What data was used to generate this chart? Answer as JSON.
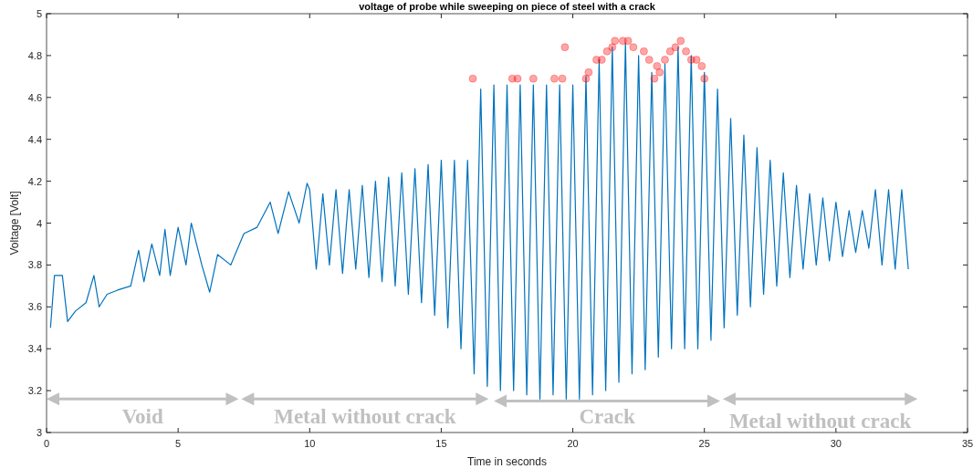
{
  "chart_data": {
    "type": "line",
    "title": "voltage of probe while sweeping on piece of steel with a crack",
    "xlabel": "Time in seconds",
    "ylabel": "Voltage [Volt]",
    "xlim": [
      0,
      35
    ],
    "xticks": [
      0,
      5,
      10,
      15,
      20,
      25,
      30,
      35
    ],
    "ylim": [
      3,
      5
    ],
    "yticks": [
      3,
      3.2,
      3.4,
      3.6,
      3.8,
      4,
      4.2,
      4.4,
      4.6,
      4.8,
      5
    ],
    "grid": false,
    "series": [
      {
        "type": "line",
        "color": "#0072bd",
        "x": [
          0.15,
          0.3,
          0.6,
          0.8,
          1.1,
          1.5,
          1.8,
          2,
          2.3,
          2.7,
          3.2,
          3.5,
          3.7,
          4,
          4.3,
          4.5,
          4.7,
          5,
          5.3,
          5.5,
          5.9,
          6.2,
          6.5,
          7,
          7.5,
          8,
          8.5,
          8.8,
          9.2,
          9.6,
          9.9,
          10,
          10.25,
          10.5,
          10.75,
          11,
          11.25,
          11.5,
          11.75,
          12,
          12.25,
          12.5,
          12.75,
          13,
          13.25,
          13.5,
          13.75,
          14,
          14.25,
          14.5,
          14.75,
          15,
          15.25,
          15.5,
          15.75,
          16,
          16.25,
          16.5,
          16.75,
          17,
          17.25,
          17.5,
          17.75,
          18,
          18.25,
          18.5,
          18.75,
          19,
          19.25,
          19.5,
          19.75,
          20,
          20.25,
          20.5,
          20.75,
          21,
          21.25,
          21.5,
          21.75,
          22,
          22.25,
          22.5,
          22.75,
          23,
          23.25,
          23.5,
          23.75,
          24,
          24.25,
          24.5,
          24.75,
          25,
          25.25,
          25.5,
          25.75,
          26,
          26.25,
          26.5,
          26.75,
          27,
          27.25,
          27.5,
          27.75,
          28,
          28.25,
          28.5,
          28.75,
          29,
          29.25,
          29.5,
          29.75,
          30,
          30.25,
          30.5,
          30.75,
          31,
          31.25,
          31.5,
          31.75,
          32,
          32.25,
          32.5,
          32.75
        ],
        "values": [
          3.5,
          3.75,
          3.75,
          3.53,
          3.58,
          3.62,
          3.75,
          3.6,
          3.66,
          3.68,
          3.7,
          3.87,
          3.72,
          3.9,
          3.75,
          3.97,
          3.75,
          3.98,
          3.8,
          4,
          3.8,
          3.67,
          3.85,
          3.8,
          3.95,
          3.98,
          4.1,
          3.95,
          4.15,
          4,
          4.19,
          4.16,
          3.78,
          4.14,
          3.8,
          4.16,
          3.76,
          4.16,
          3.78,
          4.18,
          3.74,
          4.2,
          3.72,
          4.22,
          3.7,
          4.24,
          3.66,
          4.26,
          3.62,
          4.28,
          3.56,
          4.3,
          3.5,
          4.3,
          3.4,
          4.3,
          3.28,
          4.64,
          3.22,
          4.66,
          3.2,
          4.66,
          3.2,
          4.66,
          3.18,
          4.66,
          3.16,
          4.66,
          3.18,
          4.66,
          3.16,
          4.66,
          3.16,
          4.7,
          3.18,
          4.78,
          3.2,
          4.84,
          3.24,
          4.86,
          3.28,
          4.8,
          3.3,
          4.72,
          3.36,
          4.76,
          3.4,
          4.84,
          3.4,
          4.8,
          3.4,
          4.72,
          3.44,
          4.64,
          3.5,
          4.5,
          3.56,
          4.42,
          3.6,
          4.36,
          3.66,
          4.3,
          3.7,
          4.24,
          3.74,
          4.18,
          3.78,
          4.14,
          3.8,
          4.12,
          3.82,
          4.1,
          3.84,
          4.06,
          3.86,
          4.06,
          3.88,
          4.16,
          3.8,
          4.16,
          3.78,
          4.16,
          3.78
        ]
      },
      {
        "type": "scatter",
        "color": "#ff0000",
        "marker": "circle",
        "x": [
          16.2,
          17.7,
          17.9,
          18.5,
          19.3,
          19.6,
          19.7,
          20.5,
          20.6,
          20.9,
          21.1,
          21.3,
          21.5,
          21.6,
          21.9,
          22.1,
          22.3,
          22.7,
          22.9,
          23.1,
          23.2,
          23.3,
          23.5,
          23.7,
          23.9,
          24.1,
          24.3,
          24.5,
          24.7,
          24.9,
          25
        ],
        "values": [
          4.69,
          4.69,
          4.69,
          4.69,
          4.69,
          4.69,
          4.84,
          4.69,
          4.72,
          4.78,
          4.78,
          4.82,
          4.84,
          4.87,
          4.87,
          4.87,
          4.84,
          4.82,
          4.78,
          4.69,
          4.75,
          4.72,
          4.78,
          4.82,
          4.84,
          4.87,
          4.82,
          4.78,
          4.78,
          4.75,
          4.69
        ]
      }
    ],
    "annotations": [
      "Void",
      "Metal without crack",
      "Crack",
      "Metal without crack"
    ]
  }
}
